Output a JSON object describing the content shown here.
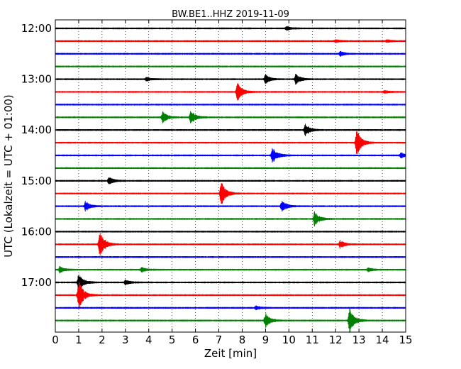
{
  "chart_data": {
    "type": "line",
    "title": "BW.BE1..HHZ 2019-11-09",
    "xlabel": "Zeit  [min]",
    "ylabel": "UTC (Lokalzeit = UTC + 01:00)",
    "xlim": [
      0,
      15
    ],
    "x_ticks": [
      "0",
      "1",
      "2",
      "3",
      "4",
      "5",
      "6",
      "7",
      "8",
      "9",
      "10",
      "11",
      "12",
      "13",
      "14",
      "15"
    ],
    "y_tick_labels": [
      "12:00",
      "13:00",
      "14:00",
      "15:00",
      "16:00",
      "17:00"
    ],
    "y_tick_rows": [
      0,
      4,
      8,
      12,
      16,
      20
    ],
    "grid": "vertical dotted",
    "trace_colors": [
      "#000000",
      "#ff0000",
      "#0000ff",
      "#008000"
    ],
    "trace_start_times": [
      "12:00",
      "12:15",
      "12:30",
      "12:45",
      "13:00",
      "13:15",
      "13:30",
      "13:45",
      "14:00",
      "14:15",
      "14:30",
      "14:45",
      "15:00",
      "15:15",
      "15:30",
      "15:45",
      "16:00",
      "16:15",
      "16:30",
      "16:45",
      "17:00",
      "17:15",
      "17:30",
      "17:45"
    ],
    "events": [
      {
        "row": 0,
        "minute": 9.9,
        "amplitude": 0.15
      },
      {
        "row": 1,
        "minute": 12.0,
        "amplitude": 0.1
      },
      {
        "row": 1,
        "minute": 14.2,
        "amplitude": 0.1
      },
      {
        "row": 2,
        "minute": 12.2,
        "amplitude": 0.2
      },
      {
        "row": 4,
        "minute": 3.9,
        "amplitude": 0.15
      },
      {
        "row": 4,
        "minute": 9.0,
        "amplitude": 0.35
      },
      {
        "row": 4,
        "minute": 10.3,
        "amplitude": 0.4
      },
      {
        "row": 5,
        "minute": 7.8,
        "amplitude": 0.75
      },
      {
        "row": 5,
        "minute": 14.1,
        "amplitude": 0.1
      },
      {
        "row": 7,
        "minute": 4.6,
        "amplitude": 0.45
      },
      {
        "row": 7,
        "minute": 5.8,
        "amplitude": 0.55
      },
      {
        "row": 8,
        "minute": 10.7,
        "amplitude": 0.45
      },
      {
        "row": 9,
        "minute": 12.9,
        "amplitude": 1.1
      },
      {
        "row": 10,
        "minute": 9.3,
        "amplitude": 0.7
      },
      {
        "row": 10,
        "minute": 14.8,
        "amplitude": 0.2
      },
      {
        "row": 12,
        "minute": 2.3,
        "amplitude": 0.3
      },
      {
        "row": 13,
        "minute": 7.1,
        "amplitude": 0.95
      },
      {
        "row": 14,
        "minute": 1.3,
        "amplitude": 0.4
      },
      {
        "row": 14,
        "minute": 9.7,
        "amplitude": 0.45
      },
      {
        "row": 15,
        "minute": 11.1,
        "amplitude": 0.6
      },
      {
        "row": 17,
        "minute": 1.9,
        "amplitude": 1.15
      },
      {
        "row": 17,
        "minute": 12.2,
        "amplitude": 0.3
      },
      {
        "row": 19,
        "minute": 0.2,
        "amplitude": 0.25
      },
      {
        "row": 19,
        "minute": 3.7,
        "amplitude": 0.2
      },
      {
        "row": 19,
        "minute": 13.4,
        "amplitude": 0.15
      },
      {
        "row": 20,
        "minute": 1.0,
        "amplitude": 0.7
      },
      {
        "row": 20,
        "minute": 3.0,
        "amplitude": 0.2
      },
      {
        "row": 21,
        "minute": 1.0,
        "amplitude": 1.2
      },
      {
        "row": 22,
        "minute": 8.6,
        "amplitude": 0.15
      },
      {
        "row": 23,
        "minute": 9.0,
        "amplitude": 0.55
      },
      {
        "row": 23,
        "minute": 12.6,
        "amplitude": 1.0
      }
    ]
  }
}
